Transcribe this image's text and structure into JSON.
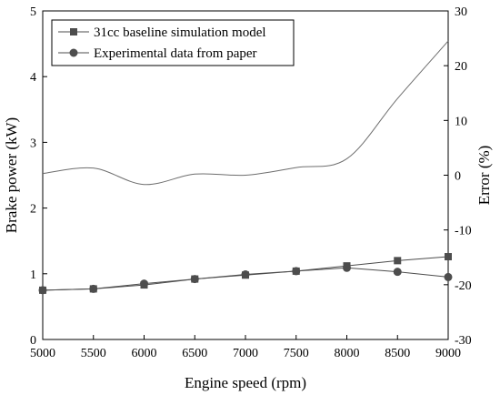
{
  "chart_data": {
    "type": "line",
    "xlabel": "Engine speed (rpm)",
    "ylabel": "Brake power (kW)",
    "y2label": "Error (%)",
    "x": [
      5000,
      5500,
      6000,
      6500,
      7000,
      7500,
      8000,
      8500,
      9000
    ],
    "x_ticks": [
      "5000",
      "5500",
      "6000",
      "6500",
      "7000",
      "7500",
      "8000",
      "8500",
      "9000"
    ],
    "y_ticks": [
      "0",
      "1",
      "2",
      "3",
      "4",
      "5"
    ],
    "y2_ticks": [
      "-30",
      "-20",
      "-10",
      "0",
      "10",
      "20",
      "30"
    ],
    "xlim": [
      5000,
      9000
    ],
    "ylim": [
      0,
      5
    ],
    "y2lim": [
      -30,
      30
    ],
    "grid": false,
    "legend_position": "top-left",
    "series": [
      {
        "name": "31cc baseline simulation model",
        "marker": "square",
        "axis": "left",
        "values": [
          0.75,
          0.77,
          0.83,
          0.92,
          0.98,
          1.04,
          1.12,
          1.2,
          1.26
        ]
      },
      {
        "name": "Experimental data from paper",
        "marker": "circle",
        "axis": "left",
        "values": [
          0.75,
          0.77,
          0.85,
          0.92,
          0.99,
          1.04,
          1.09,
          1.03,
          0.95
        ]
      },
      {
        "marker": "none",
        "axis": "right",
        "values": [
          0.3,
          1.3,
          -1.7,
          0.2,
          0.0,
          1.4,
          3.0,
          14.0,
          24.5
        ]
      }
    ],
    "colors": {
      "simulation": "#4d4d4d",
      "experimental": "#4d4d4d",
      "error": "#6e6e6e",
      "axes": "#000000"
    }
  }
}
